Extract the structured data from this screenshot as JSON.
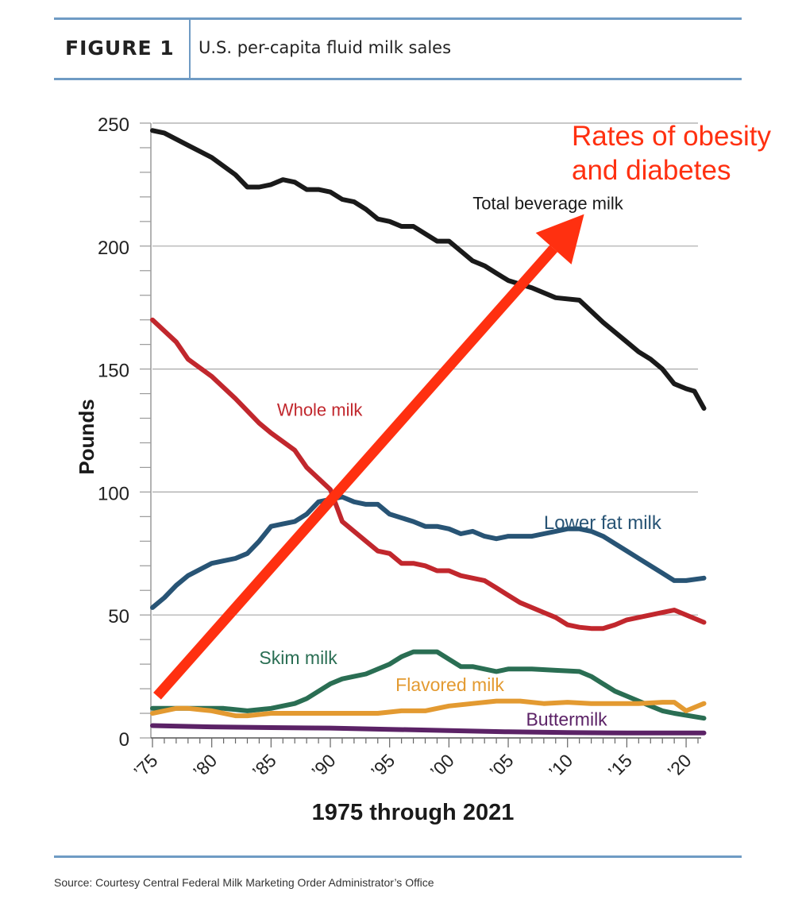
{
  "header": {
    "figure_label": "FIGURE 1",
    "title": "U.S. per-capita fluid milk sales"
  },
  "source": "Source: Courtesy Central Federal Milk Marketing Order Administrator’s Office",
  "colors": {
    "rule": "#6f9bc4",
    "total": "#1a1a1a",
    "whole": "#c1272d",
    "lower_fat": "#285475",
    "skim": "#2a6e53",
    "flavored": "#e39a31",
    "buttermilk": "#5b2266",
    "arrow": "#ff3010"
  },
  "chart_data": {
    "type": "line",
    "title": "U.S. per-capita fluid milk sales",
    "xlabel": "1975 through 2021",
    "ylabel": "Pounds",
    "xlim": [
      1975,
      2021
    ],
    "ylim": [
      0,
      250
    ],
    "y_ticks": [
      0,
      50,
      100,
      150,
      200,
      250
    ],
    "x_tick_labels": [
      {
        "year": 1975,
        "label": "’75"
      },
      {
        "year": 1980,
        "label": "’80"
      },
      {
        "year": 1985,
        "label": "’85"
      },
      {
        "year": 1990,
        "label": "’90"
      },
      {
        "year": 1995,
        "label": "’95"
      },
      {
        "year": 2000,
        "label": "’00"
      },
      {
        "year": 2005,
        "label": "’05"
      },
      {
        "year": 2010,
        "label": "’10"
      },
      {
        "year": 2015,
        "label": "’15"
      },
      {
        "year": 2020,
        "label": "’20"
      }
    ],
    "grid": true,
    "series": [
      {
        "key": "total",
        "name": "Total beverage milk",
        "label_at": [
          2002,
          215
        ],
        "points": [
          [
            1975,
            247
          ],
          [
            1976,
            246
          ],
          [
            1978,
            241
          ],
          [
            1980,
            236
          ],
          [
            1982,
            229
          ],
          [
            1983,
            224
          ],
          [
            1984,
            224
          ],
          [
            1985,
            225
          ],
          [
            1986,
            227
          ],
          [
            1987,
            226
          ],
          [
            1988,
            223
          ],
          [
            1989,
            223
          ],
          [
            1990,
            222
          ],
          [
            1991,
            219
          ],
          [
            1992,
            218
          ],
          [
            1993,
            215
          ],
          [
            1994,
            211
          ],
          [
            1995,
            210
          ],
          [
            1996,
            208
          ],
          [
            1997,
            208
          ],
          [
            1998,
            205
          ],
          [
            1999,
            202
          ],
          [
            2000,
            202
          ],
          [
            2001,
            198
          ],
          [
            2002,
            194
          ],
          [
            2003,
            192
          ],
          [
            2004,
            189
          ],
          [
            2005,
            186
          ],
          [
            2007,
            183
          ],
          [
            2009,
            179
          ],
          [
            2011,
            178
          ],
          [
            2013,
            169
          ],
          [
            2015,
            161
          ],
          [
            2016,
            157
          ],
          [
            2017,
            154
          ],
          [
            2018,
            150
          ],
          [
            2019,
            144
          ],
          [
            2020,
            142
          ],
          [
            2020.7,
            141
          ],
          [
            2021.5,
            134
          ]
        ]
      },
      {
        "key": "whole",
        "name": "Whole milk",
        "label_at": [
          1985.5,
          131
        ],
        "points": [
          [
            1975,
            170
          ],
          [
            1977,
            161
          ],
          [
            1978,
            154
          ],
          [
            1980,
            147
          ],
          [
            1982,
            138
          ],
          [
            1984,
            128
          ],
          [
            1985,
            124
          ],
          [
            1987,
            117
          ],
          [
            1988,
            110
          ],
          [
            1990,
            101
          ],
          [
            1991,
            88
          ],
          [
            1992,
            84
          ],
          [
            1993,
            80
          ],
          [
            1994,
            76
          ],
          [
            1995,
            75
          ],
          [
            1996,
            71
          ],
          [
            1997,
            71
          ],
          [
            1998,
            70
          ],
          [
            1999,
            68
          ],
          [
            2000,
            68
          ],
          [
            2001,
            66
          ],
          [
            2002,
            65
          ],
          [
            2003,
            64
          ],
          [
            2004,
            61
          ],
          [
            2005,
            58
          ],
          [
            2006,
            55
          ],
          [
            2007,
            53
          ],
          [
            2008,
            51
          ],
          [
            2009,
            49
          ],
          [
            2010,
            46
          ],
          [
            2011,
            45
          ],
          [
            2012,
            44.5
          ],
          [
            2013,
            44.5
          ],
          [
            2014,
            46
          ],
          [
            2015,
            48
          ],
          [
            2016,
            49
          ],
          [
            2017,
            50
          ],
          [
            2018,
            51
          ],
          [
            2019,
            52
          ],
          [
            2021.5,
            47
          ]
        ]
      },
      {
        "key": "lower_fat",
        "name": "Lower fat milk",
        "label_at": [
          2008,
          85
        ],
        "points": [
          [
            1975,
            53
          ],
          [
            1976,
            57
          ],
          [
            1977,
            62
          ],
          [
            1978,
            66
          ],
          [
            1980,
            71
          ],
          [
            1981,
            72
          ],
          [
            1982,
            73
          ],
          [
            1983,
            75
          ],
          [
            1984,
            80
          ],
          [
            1985,
            86
          ],
          [
            1986,
            87
          ],
          [
            1987,
            88
          ],
          [
            1988,
            91
          ],
          [
            1989,
            96
          ],
          [
            1990,
            97
          ],
          [
            1991,
            98
          ],
          [
            1992,
            96
          ],
          [
            1993,
            95
          ],
          [
            1994,
            95
          ],
          [
            1995,
            91
          ],
          [
            1997,
            88
          ],
          [
            1998,
            86
          ],
          [
            1999,
            86
          ],
          [
            2000,
            85
          ],
          [
            2001,
            83
          ],
          [
            2002,
            84
          ],
          [
            2003,
            82
          ],
          [
            2004,
            81
          ],
          [
            2005,
            82
          ],
          [
            2006,
            82
          ],
          [
            2007,
            82
          ],
          [
            2008,
            83
          ],
          [
            2009,
            84
          ],
          [
            2010,
            85
          ],
          [
            2011,
            85
          ],
          [
            2012,
            84
          ],
          [
            2013,
            82
          ],
          [
            2014,
            79
          ],
          [
            2015,
            76
          ],
          [
            2016,
            73
          ],
          [
            2017,
            70
          ],
          [
            2018,
            67
          ],
          [
            2019,
            64
          ],
          [
            2020,
            64
          ],
          [
            2021.5,
            65
          ]
        ]
      },
      {
        "key": "skim",
        "name": "Skim milk",
        "label_at": [
          1984,
          30
        ],
        "points": [
          [
            1975,
            12
          ],
          [
            1977,
            12
          ],
          [
            1979,
            12
          ],
          [
            1981,
            12
          ],
          [
            1983,
            11
          ],
          [
            1985,
            12
          ],
          [
            1987,
            14
          ],
          [
            1988,
            16
          ],
          [
            1990,
            22
          ],
          [
            1991,
            24
          ],
          [
            1992,
            25
          ],
          [
            1993,
            26
          ],
          [
            1995,
            30
          ],
          [
            1996,
            33
          ],
          [
            1997,
            35
          ],
          [
            1998,
            35
          ],
          [
            1999,
            35
          ],
          [
            2000,
            32
          ],
          [
            2001,
            29
          ],
          [
            2002,
            29
          ],
          [
            2003,
            28
          ],
          [
            2004,
            27
          ],
          [
            2005,
            28
          ],
          [
            2007,
            28
          ],
          [
            2009,
            27.5
          ],
          [
            2011,
            27
          ],
          [
            2012,
            25
          ],
          [
            2013,
            22
          ],
          [
            2014,
            19
          ],
          [
            2015,
            17
          ],
          [
            2016,
            15
          ],
          [
            2017,
            13
          ],
          [
            2018,
            11
          ],
          [
            2019,
            10
          ],
          [
            2021.5,
            8
          ]
        ]
      },
      {
        "key": "flavored",
        "name": "Flavored milk",
        "label_at": [
          1995.5,
          19
        ],
        "points": [
          [
            1975,
            10
          ],
          [
            1977,
            12
          ],
          [
            1978,
            12
          ],
          [
            1980,
            11
          ],
          [
            1982,
            9
          ],
          [
            1983,
            9
          ],
          [
            1985,
            10
          ],
          [
            1987,
            10
          ],
          [
            1990,
            10
          ],
          [
            1992,
            10
          ],
          [
            1994,
            10
          ],
          [
            1996,
            11
          ],
          [
            1998,
            11
          ],
          [
            2000,
            13
          ],
          [
            2002,
            14
          ],
          [
            2004,
            15
          ],
          [
            2006,
            15
          ],
          [
            2008,
            14
          ],
          [
            2010,
            14.5
          ],
          [
            2012,
            14
          ],
          [
            2014,
            14
          ],
          [
            2016,
            14
          ],
          [
            2018,
            14.5
          ],
          [
            2019,
            14.5
          ],
          [
            2020,
            11
          ],
          [
            2021.5,
            14
          ]
        ]
      },
      {
        "key": "buttermilk",
        "name": "Buttermilk",
        "label_at": [
          2006.5,
          5
        ],
        "points": [
          [
            1975,
            5
          ],
          [
            1980,
            4.5
          ],
          [
            1985,
            4.2
          ],
          [
            1990,
            4
          ],
          [
            1995,
            3.5
          ],
          [
            2000,
            3
          ],
          [
            2005,
            2.5
          ],
          [
            2010,
            2.2
          ],
          [
            2015,
            2
          ],
          [
            2021.5,
            2
          ]
        ]
      }
    ],
    "annotation": {
      "text_lines": [
        "Rates of obesity",
        "and diabetes"
      ],
      "arrow_from": [
        1975.4,
        17
      ],
      "arrow_to": [
        2011.4,
        213
      ]
    }
  }
}
